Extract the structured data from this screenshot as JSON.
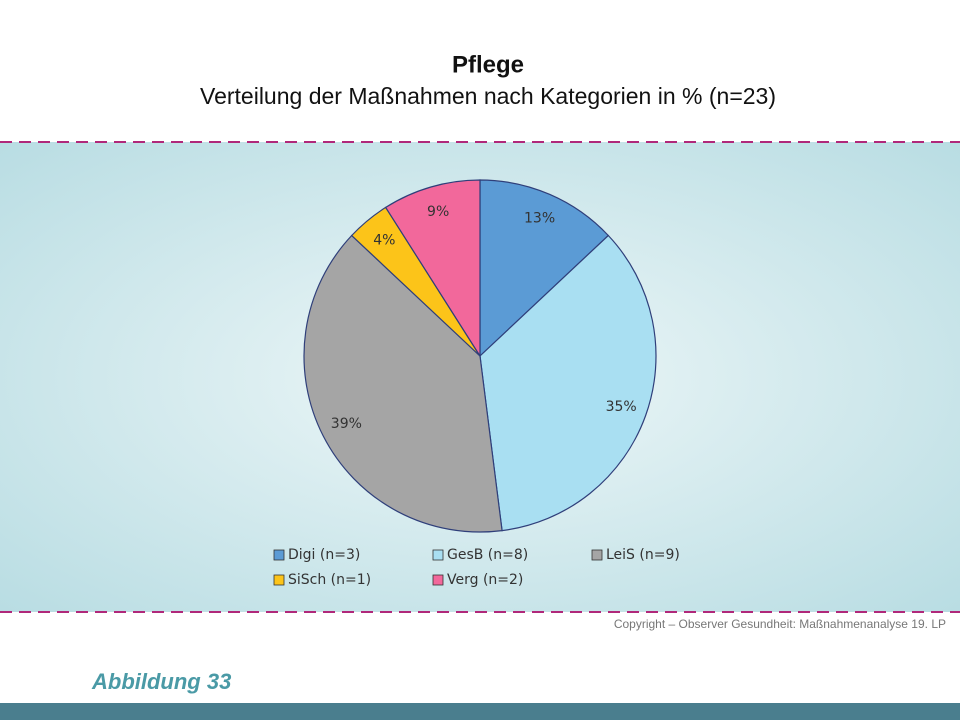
{
  "chart_data": {
    "type": "pie",
    "title": "Pflege",
    "subtitle": "Verteilung der Maßnahmen nach Kategorien in % (n=23)",
    "categories": [
      "Digi (n=3)",
      "GesB (n=8)",
      "LeiS (n=9)",
      "SiSch (n=1)",
      "Verg (n=2)"
    ],
    "values": [
      13,
      35,
      39,
      4,
      9
    ],
    "value_labels": [
      "13%",
      "35%",
      "39%",
      "4%",
      "9%"
    ],
    "colors": [
      "#5b9bd5",
      "#a9dff2",
      "#a5a5a5",
      "#fcc419",
      "#f2689b"
    ],
    "copyright": "Copyright – Observer Gesundheit: Maßnahmenanalyse 19. LP"
  },
  "figure_label": "Abbildung 33"
}
